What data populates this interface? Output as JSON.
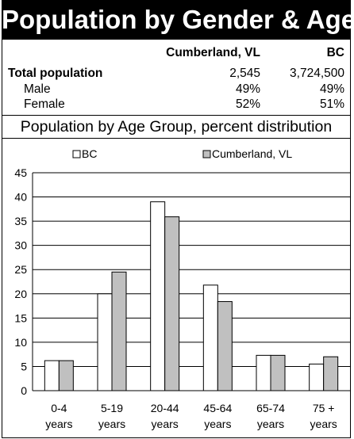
{
  "header": {
    "title": "Population by Gender & Age"
  },
  "summary_table": {
    "col_headers": [
      "Cumberland, VL",
      "BC"
    ],
    "rows": [
      {
        "label": "Total population",
        "values": [
          "2,545",
          "3,724,500"
        ]
      },
      {
        "label": "Male",
        "values": [
          "49%",
          "49%"
        ]
      },
      {
        "label": "Female",
        "values": [
          "52%",
          "51%"
        ]
      }
    ]
  },
  "section": {
    "title": "Population by Age Group, percent distribution"
  },
  "chart_data": {
    "type": "bar",
    "categories": [
      [
        "0-4",
        "years"
      ],
      [
        "5-19",
        "years"
      ],
      [
        "20-44",
        "years"
      ],
      [
        "45-64",
        "years"
      ],
      [
        "65-74",
        "years"
      ],
      [
        "75 +",
        "years"
      ]
    ],
    "series": [
      {
        "name": "BC",
        "values": [
          6.2,
          20,
          39,
          21.8,
          7.3,
          5.5
        ],
        "color": "#ffffff"
      },
      {
        "name": "Cumberland, VL",
        "values": [
          6.2,
          24.5,
          35.9,
          18.4,
          7.3,
          7
        ],
        "color": "#c0c0c0"
      }
    ],
    "ylim": [
      0,
      45
    ],
    "yticks": [
      0,
      5,
      10,
      15,
      20,
      25,
      30,
      35,
      40,
      45
    ],
    "grid": true,
    "legend_position": "top"
  }
}
